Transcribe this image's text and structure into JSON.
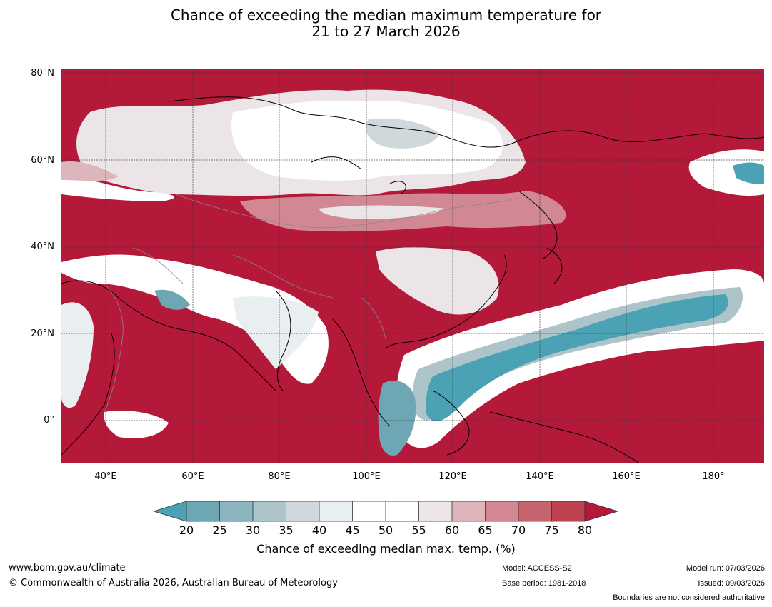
{
  "title": {
    "line1": "Chance of exceeding the median maximum temperature for",
    "line2": "21 to 27 March 2026"
  },
  "map": {
    "lat_labels": [
      "80°N",
      "60°N",
      "40°N",
      "20°N",
      "0°"
    ],
    "lon_labels": [
      "40°E",
      "60°E",
      "80°E",
      "100°E",
      "120°E",
      "140°E",
      "160°E",
      "180°"
    ],
    "colors": {
      "c20": "#4aa2b4",
      "c25": "#6ea7b4",
      "c30": "#8bb6c1",
      "c35": "#adc4ca",
      "c40": "#d0d8db",
      "c45": "#e9eef0",
      "c50": "#ffffff",
      "c55": "#ffffff",
      "c60": "#ebe5e7",
      "c65": "#ddb6bd",
      "c70": "#d18893",
      "c75": "#c5636e",
      "c80": "#bf4251",
      "c80plus": "#b5193a"
    }
  },
  "colorbar": {
    "ticks": [
      "20",
      "25",
      "30",
      "35",
      "40",
      "45",
      "50",
      "55",
      "60",
      "65",
      "70",
      "75",
      "80"
    ],
    "label": "Chance of exceeding median max. temp. (%)"
  },
  "footer": {
    "website": "www.bom.gov.au/climate",
    "copyright": "© Commonwealth of Australia 2026, Australian Bureau of Meteorology",
    "model": "Model: ACCESS-S2",
    "base_period": "Base period: 1981-2018",
    "model_run": "Model run: 07/03/2026",
    "issued": "Issued: 09/03/2026",
    "boundaries": "Boundaries are not considered authoritative"
  }
}
